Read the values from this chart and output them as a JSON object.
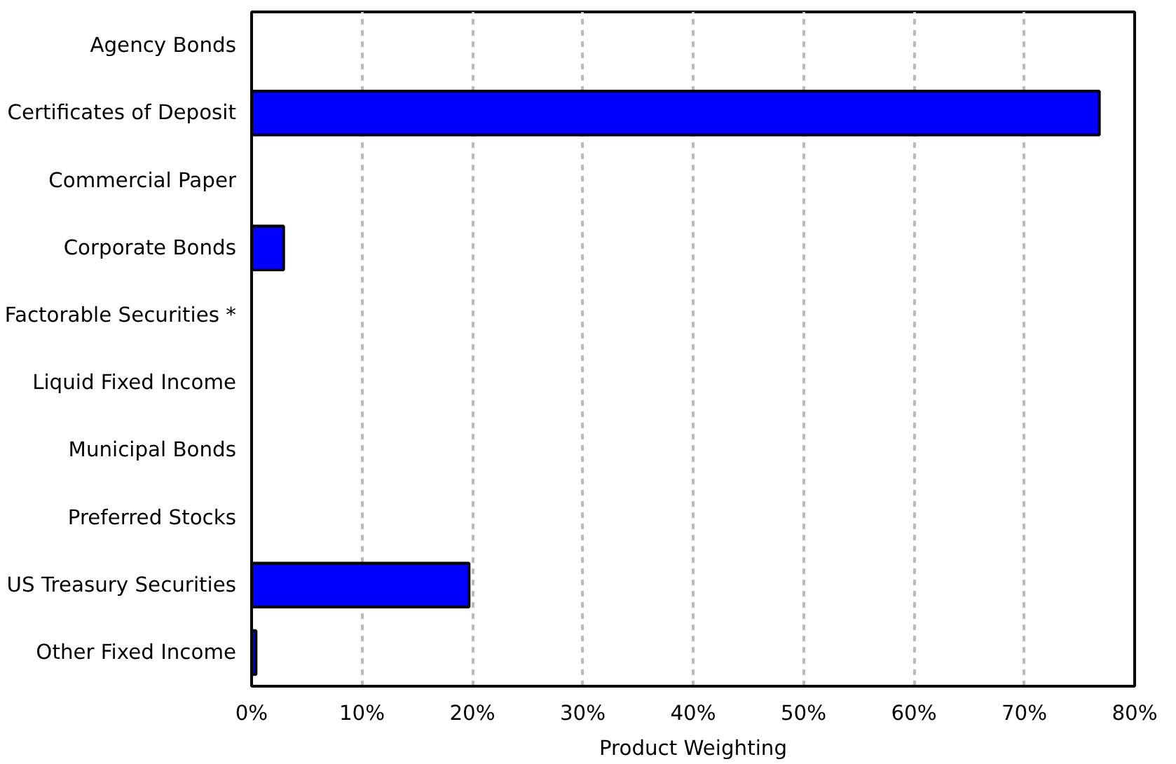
{
  "chart_data": {
    "type": "bar",
    "orientation": "horizontal",
    "xlabel": "Product Weighting",
    "categories": [
      "Agency Bonds",
      "Certificates of Deposit",
      "Commercial Paper",
      "Corporate Bonds",
      "Factorable Securities *",
      "Liquid Fixed Income",
      "Municipal Bonds",
      "Preferred Stocks",
      "US Treasury Securities",
      "Other Fixed Income"
    ],
    "values": [
      0,
      76.8,
      0,
      2.9,
      0,
      0,
      0,
      0,
      19.7,
      0.4
    ],
    "color": "#0000ff",
    "xlim": [
      0,
      80
    ],
    "xticks": [
      {
        "value": 0,
        "label": "0%"
      },
      {
        "value": 10,
        "label": "10%"
      },
      {
        "value": 20,
        "label": "20%"
      },
      {
        "value": 30,
        "label": "30%"
      },
      {
        "value": 40,
        "label": "40%"
      },
      {
        "value": 50,
        "label": "50%"
      },
      {
        "value": 60,
        "label": "60%"
      },
      {
        "value": 70,
        "label": "70%"
      },
      {
        "value": 80,
        "label": "80%"
      }
    ],
    "grid": "x"
  }
}
